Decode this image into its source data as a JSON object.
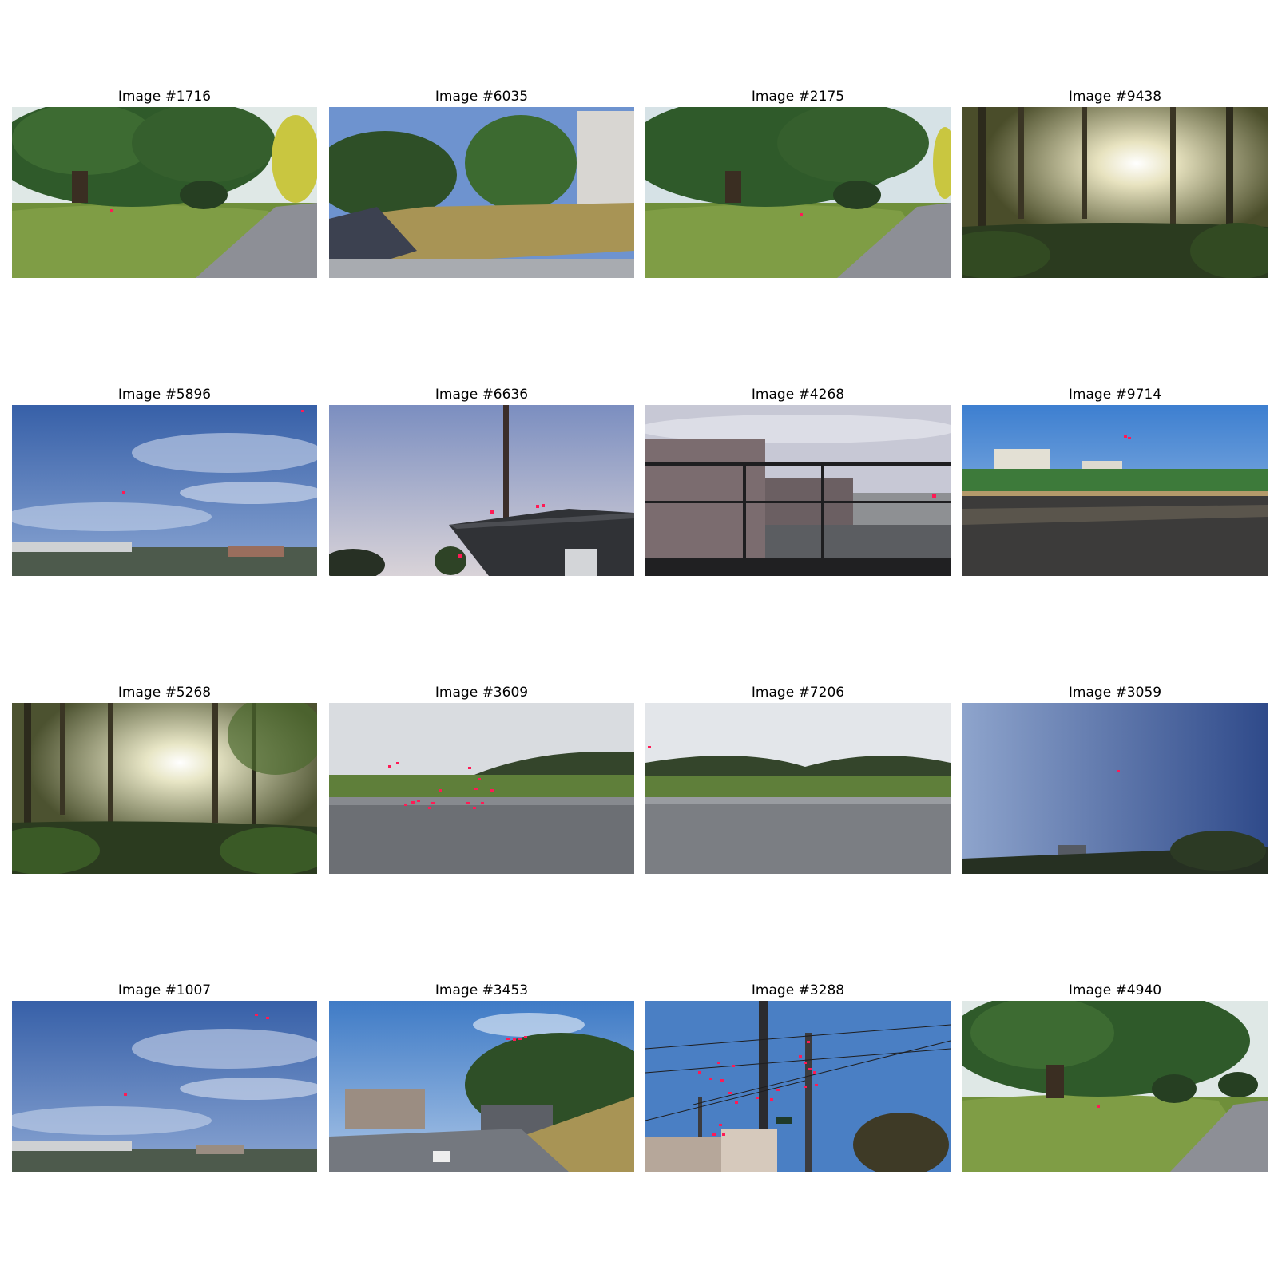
{
  "figure": {
    "panels": [
      {
        "title": "Image #1716",
        "scene": "large spreading tree on lawn with path"
      },
      {
        "title": "Image #6035",
        "scene": "grassy slope, trees and white building"
      },
      {
        "title": "Image #2175",
        "scene": "large spreading tree on lawn with path"
      },
      {
        "title": "Image #9438",
        "scene": "sun through row of tall trees"
      },
      {
        "title": "Image #5896",
        "scene": "blue sky with wispy clouds over town"
      },
      {
        "title": "Image #6636",
        "scene": "evening sky with pole and roof"
      },
      {
        "title": "Image #4268",
        "scene": "buildings and parking lot behind railing"
      },
      {
        "title": "Image #9714",
        "scene": "sports ground with fence and apartments"
      },
      {
        "title": "Image #5268",
        "scene": "sun through row of tall trees"
      },
      {
        "title": "Image #3609",
        "scene": "pond with hills under overcast sky"
      },
      {
        "title": "Image #7206",
        "scene": "pond with hills under overcast sky"
      },
      {
        "title": "Image #3059",
        "scene": "clear gradient sky with tower and trees"
      },
      {
        "title": "Image #1007",
        "scene": "blue sky with wispy clouds over town"
      },
      {
        "title": "Image #3453",
        "scene": "road and trees on hill under blue sky"
      },
      {
        "title": "Image #3288",
        "scene": "utility poles and wires against blue sky"
      },
      {
        "title": "Image #4940",
        "scene": "large spreading tree on lawn with path"
      }
    ]
  },
  "colors": {
    "marker": "#ff1a55",
    "sky_blue": "#3f6fb5",
    "grass": "#6f8f3a",
    "overcast": "#d9dce0"
  }
}
